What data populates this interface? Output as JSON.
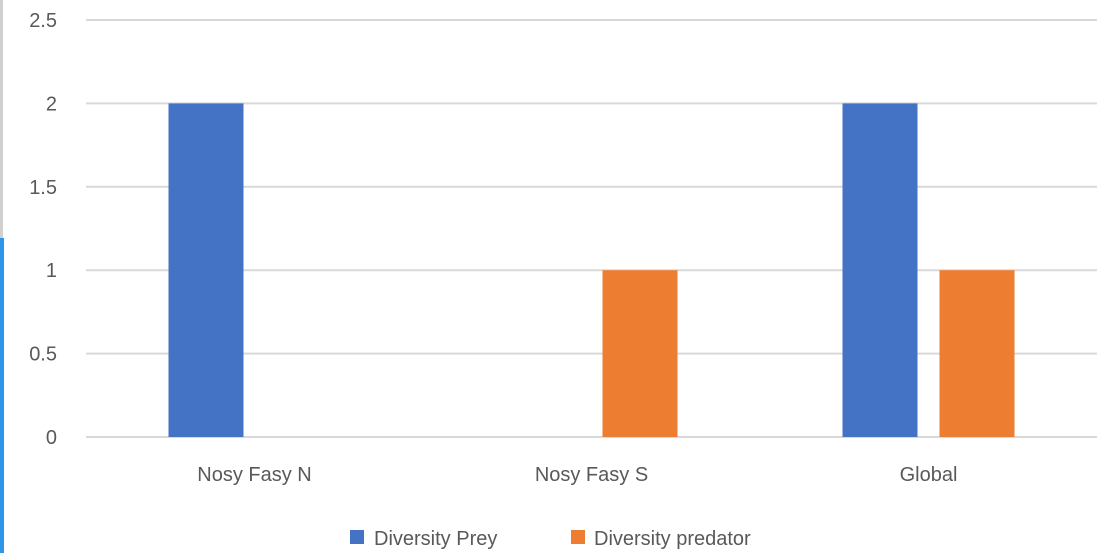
{
  "chart_data": {
    "type": "bar",
    "categories": [
      "Nosy Fasy N",
      "Nosy Fasy S",
      "Global"
    ],
    "series": [
      {
        "name": "Diversity Prey",
        "values": [
          2,
          0,
          2
        ],
        "color": "#4472C4"
      },
      {
        "name": "Diversity predator",
        "values": [
          0,
          1,
          1
        ],
        "color": "#ED7D31"
      }
    ],
    "yticks": [
      "0",
      "0.5",
      "1",
      "1.5",
      "2",
      "2.5"
    ],
    "ylim": [
      0,
      2.5
    ],
    "grid": true,
    "legend": "bottom-center",
    "gridline_color": "#d9d9d9",
    "text_color": "#595959",
    "frame_colors": {
      "edge": "#d0d0d0",
      "accent": "#2b97e6"
    }
  }
}
